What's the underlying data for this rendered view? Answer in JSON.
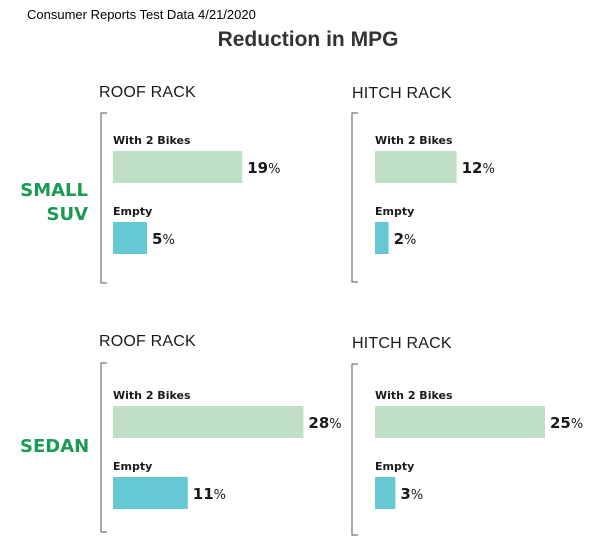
{
  "source_note": "Consumer Reports Test Data 4/21/2020",
  "colors": {
    "with_bikes": "#bfe0c5",
    "empty": "#66c8d2",
    "row_label": "#1a9a52",
    "axis": "#555555"
  },
  "chart_data": {
    "type": "bar",
    "title": "Reduction in MPG",
    "unit": "%",
    "rows": [
      "SMALL SUV",
      "SEDAN"
    ],
    "panels": [
      "ROOF RACK",
      "HITCH RACK"
    ],
    "categories": [
      "With 2 Bikes",
      "Empty"
    ],
    "xlim": [
      0,
      30
    ],
    "grid": false,
    "series": [
      {
        "row": "SMALL SUV",
        "panel": "ROOF RACK",
        "values": [
          19,
          5
        ]
      },
      {
        "row": "SMALL SUV",
        "panel": "HITCH RACK",
        "values": [
          12,
          2
        ]
      },
      {
        "row": "SEDAN",
        "panel": "ROOF RACK",
        "values": [
          28,
          11
        ]
      },
      {
        "row": "SEDAN",
        "panel": "HITCH RACK",
        "values": [
          25,
          3
        ]
      }
    ]
  }
}
